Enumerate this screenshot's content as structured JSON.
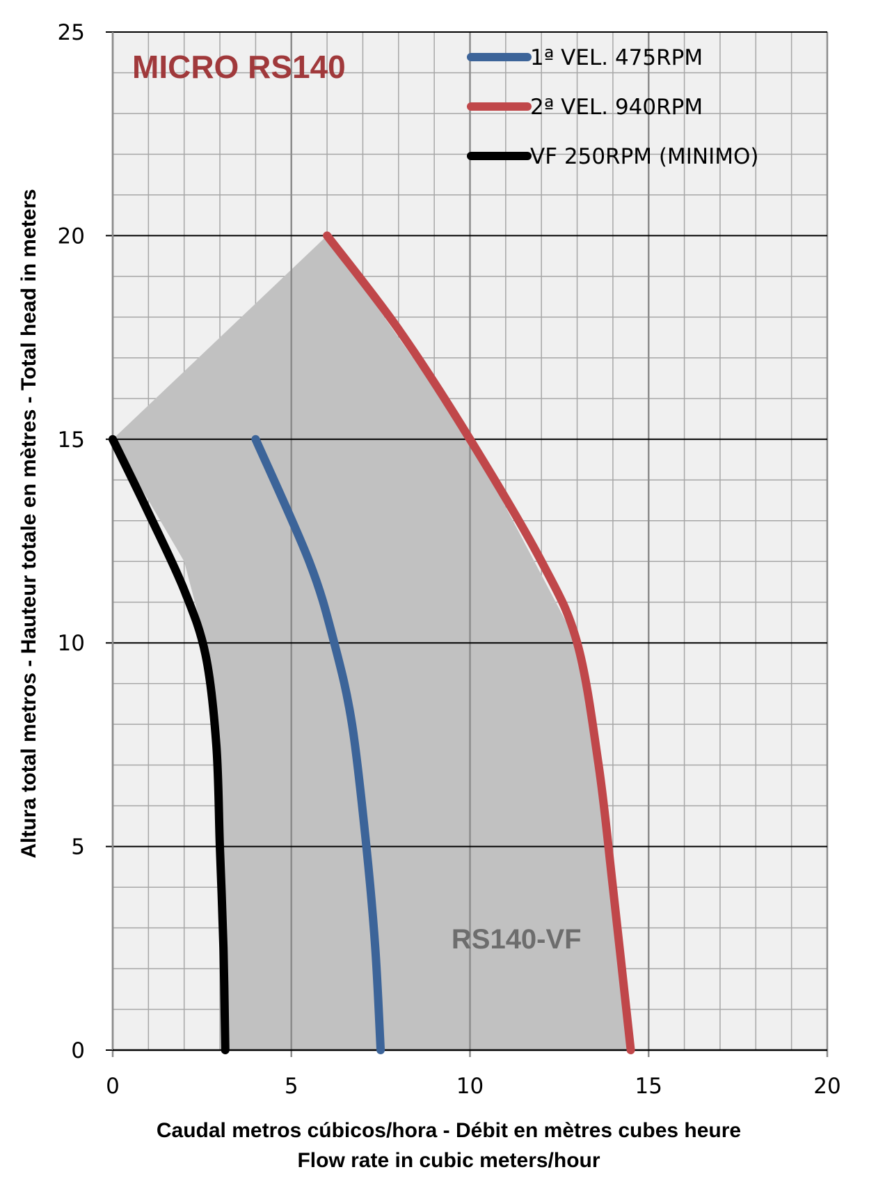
{
  "chart_data": {
    "type": "line",
    "title": "MICRO RS140",
    "xlabel_line1": "Caudal metros cúbicos/hora - Débit en mètres cubes heure",
    "xlabel_line2": "Flow rate in cubic meters/hour",
    "ylabel": "Altura total metros - Hauteur totale en mètres - Total head in meters",
    "xlim": [
      0,
      20
    ],
    "ylim": [
      0,
      25
    ],
    "x_ticks": [
      0,
      5,
      10,
      15,
      20
    ],
    "y_ticks": [
      0,
      5,
      10,
      15,
      20,
      25
    ],
    "grid": true,
    "legend_position": "top-right",
    "region_label": "RS140-VF",
    "colors": {
      "title": "#a0393b",
      "region_fill": "#c1c1c1",
      "region_label": "#6d6d6d",
      "plot_bg": "#f0f0f0",
      "major_grid": "#000000",
      "minor_grid": "#a6a6a6"
    },
    "operating_region": [
      [
        0,
        15
      ],
      [
        6,
        20
      ],
      [
        10,
        15
      ],
      [
        13,
        10
      ],
      [
        13.5,
        7
      ],
      [
        14.1,
        3
      ],
      [
        14.5,
        0
      ],
      [
        3.2,
        0
      ],
      [
        3.0,
        5
      ],
      [
        2.9,
        8
      ],
      [
        2.6,
        10
      ],
      [
        2.0,
        12
      ],
      [
        0,
        15
      ]
    ],
    "series": [
      {
        "name": "1ª VEL. 475RPM",
        "color": "#3c6499",
        "x": [
          4.0,
          5.5,
          6.2,
          6.7,
          7.1,
          7.35,
          7.5
        ],
        "y": [
          15,
          12,
          10,
          8,
          5,
          2.5,
          0
        ]
      },
      {
        "name": "2ª VEL. 940RPM",
        "color": "#c0474a",
        "x": [
          6.0,
          8.0,
          10.0,
          12.0,
          13.0,
          13.6,
          14.0,
          14.5
        ],
        "y": [
          20,
          17.7,
          15.0,
          12.0,
          10.0,
          7.0,
          4.0,
          0.0
        ]
      },
      {
        "name": "VF 250RPM (MINIMO)",
        "color": "#000000",
        "x": [
          0.0,
          1.0,
          2.0,
          2.6,
          2.9,
          3.0,
          3.1,
          3.15
        ],
        "y": [
          15,
          13.2,
          11.3,
          9.7,
          7.5,
          5.0,
          2.5,
          0.0
        ]
      }
    ]
  }
}
